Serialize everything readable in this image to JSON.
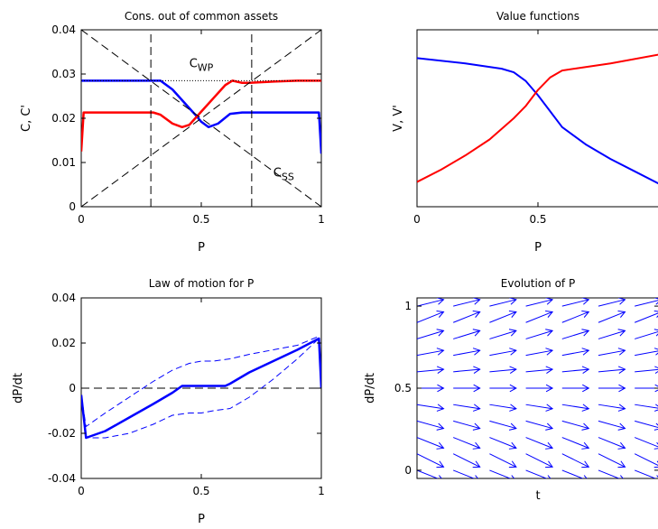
{
  "colors": {
    "blue": "#0000ff",
    "red": "#ff0000",
    "black": "#000000",
    "axis": "#000000"
  },
  "chart_data": [
    {
      "id": "p1",
      "type": "line",
      "title": "Cons. out of common assets",
      "xlabel": "P",
      "ylabel": "C, C'",
      "xlim": [
        0,
        1
      ],
      "ylim": [
        0,
        0.04
      ],
      "xticks": [
        0,
        0.5,
        1
      ],
      "xtick_labels": [
        "0",
        "0.5",
        "1"
      ],
      "yticks": [
        0,
        0.01,
        0.02,
        0.03,
        0.04
      ],
      "ytick_labels": [
        "0",
        "0.01",
        "0.02",
        "0.03",
        "0.04"
      ],
      "annotations": [
        {
          "base": "C",
          "sub": "WP",
          "x": 0.45,
          "y": 0.0315
        },
        {
          "base": "C",
          "sub": "SS",
          "x": 0.8,
          "y": 0.0068
        }
      ],
      "series": [
        {
          "color": "#0000ff",
          "width": 2.5,
          "dash": "",
          "x": [
            0,
            0.01,
            0.1,
            0.2,
            0.3,
            0.33,
            0.38,
            0.43,
            0.48,
            0.5,
            0.53,
            0.57,
            0.62,
            0.67,
            0.7,
            0.8,
            0.9,
            0.99,
            1.0
          ],
          "y": [
            0.0285,
            0.0285,
            0.0285,
            0.0285,
            0.0285,
            0.0285,
            0.0265,
            0.0235,
            0.0205,
            0.0192,
            0.018,
            0.0188,
            0.021,
            0.0213,
            0.0213,
            0.0213,
            0.0213,
            0.0213,
            0.012
          ]
        },
        {
          "color": "#ff0000",
          "width": 2.5,
          "dash": "",
          "x": [
            0,
            0.01,
            0.1,
            0.2,
            0.3,
            0.33,
            0.38,
            0.42,
            0.45,
            0.5,
            0.55,
            0.6,
            0.63,
            0.67,
            0.7,
            0.8,
            0.9,
            1.0
          ],
          "y": [
            0.0125,
            0.0213,
            0.0213,
            0.0213,
            0.0213,
            0.0208,
            0.0188,
            0.018,
            0.0185,
            0.0215,
            0.0245,
            0.0275,
            0.0285,
            0.028,
            0.028,
            0.0283,
            0.0285,
            0.0285
          ]
        },
        {
          "color": "#000000",
          "width": 1,
          "dash": "9,5",
          "x": [
            0,
            1
          ],
          "y": [
            0,
            0.04
          ]
        },
        {
          "color": "#000000",
          "width": 1,
          "dash": "9,5",
          "x": [
            0,
            1
          ],
          "y": [
            0.04,
            0
          ]
        },
        {
          "color": "#000000",
          "width": 1,
          "dash": "9,5",
          "x": [
            0.29,
            0.29
          ],
          "y": [
            0,
            0.04
          ]
        },
        {
          "color": "#000000",
          "width": 1,
          "dash": "9,5",
          "x": [
            0.71,
            0.71
          ],
          "y": [
            0,
            0.04
          ]
        },
        {
          "color": "#000000",
          "width": 1,
          "dash": "1,2",
          "x": [
            0,
            1
          ],
          "y": [
            0.0285,
            0.0285
          ]
        }
      ]
    },
    {
      "id": "p2",
      "type": "line",
      "title": "Value functions",
      "xlabel": "P",
      "ylabel": "V, V'",
      "xlim": [
        0,
        1
      ],
      "ylim": [
        0,
        1
      ],
      "xticks": [
        0,
        0.5,
        1
      ],
      "xtick_labels": [
        "0",
        "0.5",
        ""
      ],
      "yticks": [],
      "ytick_labels": [],
      "series": [
        {
          "color": "#0000ff",
          "width": 2,
          "dash": "",
          "x": [
            0,
            0.2,
            0.35,
            0.4,
            0.45,
            0.5,
            0.55,
            0.6,
            0.7,
            0.8,
            0.9,
            1.0
          ],
          "y": [
            0.84,
            0.81,
            0.78,
            0.76,
            0.71,
            0.63,
            0.54,
            0.45,
            0.35,
            0.27,
            0.2,
            0.13
          ]
        },
        {
          "color": "#ff0000",
          "width": 2,
          "dash": "",
          "x": [
            0,
            0.1,
            0.2,
            0.3,
            0.4,
            0.45,
            0.5,
            0.55,
            0.6,
            0.65,
            0.8,
            1.0
          ],
          "y": [
            0.14,
            0.21,
            0.29,
            0.38,
            0.5,
            0.57,
            0.66,
            0.73,
            0.77,
            0.78,
            0.81,
            0.86
          ]
        }
      ]
    },
    {
      "id": "p3",
      "type": "line",
      "title": "Law of motion for P",
      "xlabel": "P",
      "ylabel": "dP/dt",
      "xlim": [
        0,
        1
      ],
      "ylim": [
        -0.04,
        0.04
      ],
      "xticks": [
        0,
        0.5,
        1
      ],
      "xtick_labels": [
        "0",
        "0.5",
        "1"
      ],
      "yticks": [
        -0.04,
        -0.02,
        0,
        0.02,
        0.04
      ],
      "ytick_labels": [
        "-0.04",
        "-0.02",
        "0",
        "0.02",
        "0.04"
      ],
      "series": [
        {
          "color": "#000000",
          "width": 1,
          "dash": "9,5",
          "x": [
            0,
            1
          ],
          "y": [
            0,
            0
          ]
        },
        {
          "color": "#0000ff",
          "width": 2.5,
          "dash": "",
          "x": [
            0,
            0.02,
            0.1,
            0.2,
            0.3,
            0.38,
            0.42,
            0.5,
            0.6,
            0.62,
            0.7,
            0.8,
            0.9,
            0.99,
            1.0
          ],
          "y": [
            -0.003,
            -0.022,
            -0.019,
            -0.013,
            -0.007,
            -0.002,
            0.001,
            0.001,
            0.001,
            0.002,
            0.007,
            0.012,
            0.017,
            0.022,
            0.0
          ]
        },
        {
          "color": "#0000ff",
          "width": 1,
          "dash": "7,4",
          "x": [
            0,
            0.02,
            0.1,
            0.2,
            0.3,
            0.38,
            0.45,
            0.5,
            0.55,
            0.62,
            0.7,
            0.8,
            0.9,
            0.99,
            1.0
          ],
          "y": [
            -0.003,
            -0.017,
            -0.011,
            -0.004,
            0.003,
            0.008,
            0.011,
            0.012,
            0.012,
            0.013,
            0.015,
            0.017,
            0.019,
            0.023,
            0.001
          ]
        },
        {
          "color": "#0000ff",
          "width": 1,
          "dash": "7,4",
          "x": [
            0,
            0.02,
            0.1,
            0.2,
            0.3,
            0.38,
            0.45,
            0.5,
            0.55,
            0.62,
            0.7,
            0.8,
            0.9,
            0.99,
            1.0
          ],
          "y": [
            -0.003,
            -0.022,
            -0.022,
            -0.02,
            -0.016,
            -0.012,
            -0.011,
            -0.011,
            -0.01,
            -0.009,
            -0.004,
            0.004,
            0.013,
            0.022,
            0.001
          ]
        }
      ]
    },
    {
      "id": "p4",
      "type": "quiver",
      "title": "Evolution of P",
      "xlabel": "t",
      "ylabel": "dP/dt",
      "xlim": [
        0,
        1
      ],
      "ylim": [
        -0.05,
        1.05
      ],
      "xticks": [],
      "xtick_labels": [],
      "yticks": [
        0,
        0.5,
        1
      ],
      "ytick_labels": [
        "0",
        "0.5",
        "1"
      ],
      "quiver": {
        "color": "#0000ff",
        "columns": 7,
        "col_step": 0.15,
        "col_start": 0.0,
        "rows": [
          0,
          0.1,
          0.2,
          0.3,
          0.4,
          0.5,
          0.6,
          0.7,
          0.8,
          0.9,
          1.0
        ],
        "dx": 0.11,
        "dy": [
          -0.065,
          -0.08,
          -0.065,
          -0.045,
          -0.025,
          0.0,
          0.015,
          0.03,
          0.05,
          0.065,
          0.04
        ]
      }
    }
  ]
}
